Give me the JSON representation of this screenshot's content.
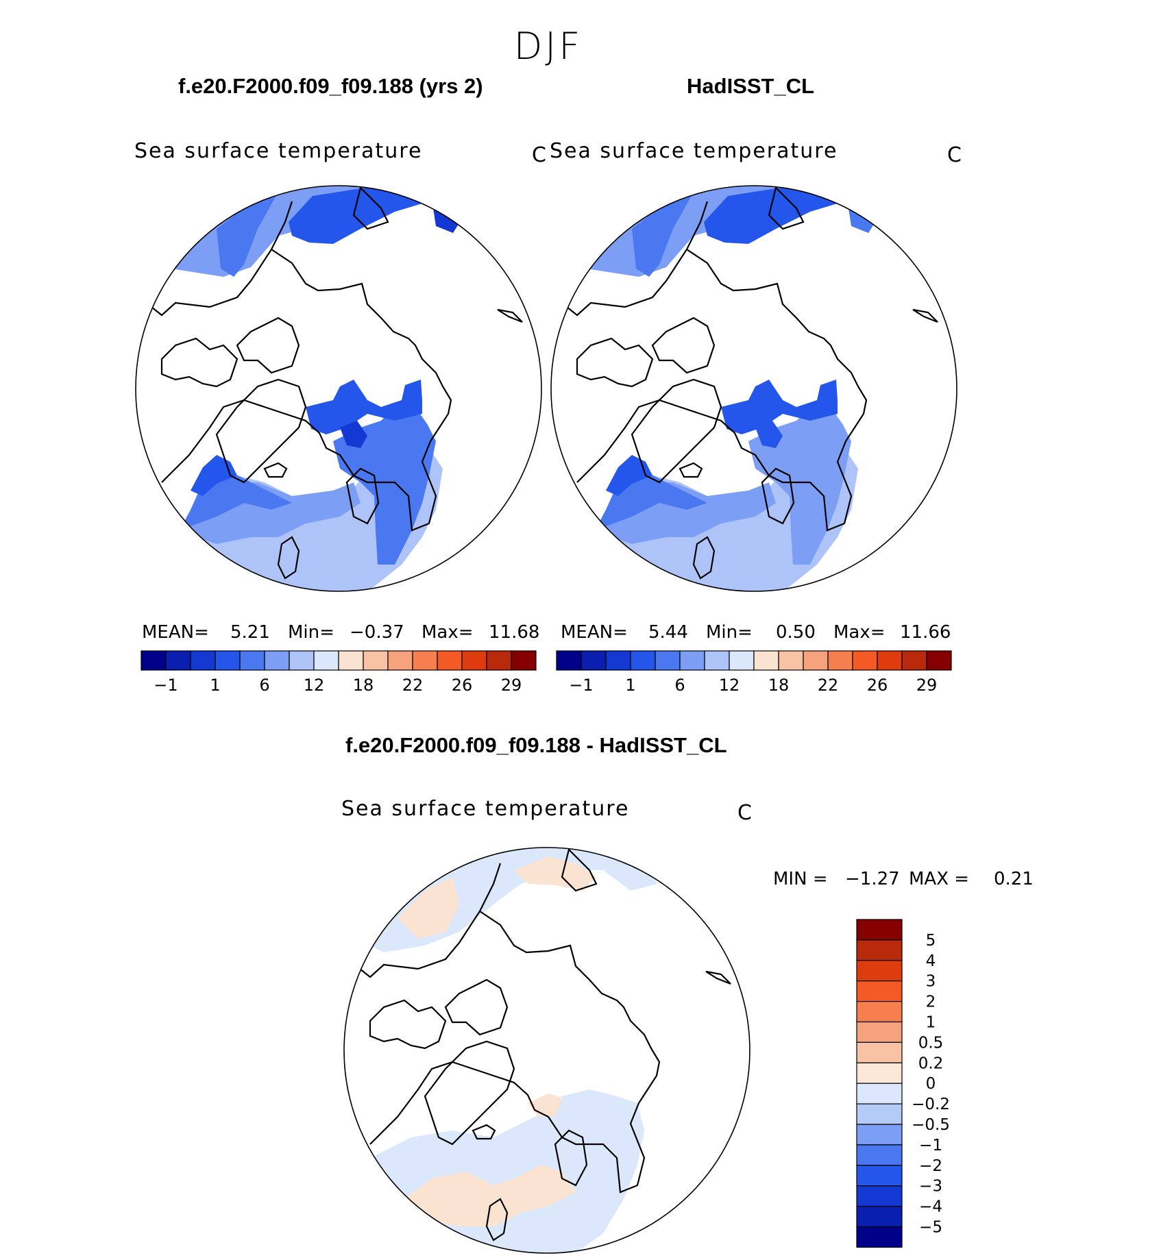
{
  "season": "DJF",
  "panels": [
    {
      "case": "f.e20.F2000.f09_f09.188 (yrs 2)",
      "variable": "Sea surface temperature",
      "units": "C",
      "mean_label": "MEAN=",
      "mean": "5.21",
      "min_label": "Min=",
      "min": "−0.37",
      "max_label": "Max=",
      "max": "11.68"
    },
    {
      "case": "HadISST_CL",
      "variable": "Sea surface temperature",
      "units": "C",
      "mean_label": "MEAN=",
      "mean": "5.44",
      "min_label": "Min=",
      "min": "0.50",
      "max_label": "Max=",
      "max": "11.66"
    }
  ],
  "diff": {
    "title": "f.e20.F2000.f09_f09.188 - HadISST_CL",
    "variable": "Sea surface temperature",
    "units": "C",
    "min_label": "MIN =",
    "min": "−1.27",
    "max_label": "MAX =",
    "max": "0.21"
  },
  "chart_data": [
    {
      "type": "heatmap",
      "title": "f.e20.F2000.f09_f09.188 (yrs 2)",
      "projection": "north-polar-stereographic",
      "variable": "Sea surface temperature",
      "units": "C",
      "mean": 5.21,
      "min": -0.37,
      "max": 11.68,
      "colorbar_ticks": [
        "−1",
        "1",
        "6",
        "12",
        "18",
        "22",
        "26",
        "29"
      ]
    },
    {
      "type": "heatmap",
      "title": "HadISST_CL",
      "projection": "north-polar-stereographic",
      "variable": "Sea surface temperature",
      "units": "C",
      "mean": 5.44,
      "min": 0.5,
      "max": 11.66,
      "colorbar_ticks": [
        "−1",
        "1",
        "6",
        "12",
        "18",
        "22",
        "26",
        "29"
      ]
    },
    {
      "type": "heatmap",
      "title": "f.e20.F2000.f09_f09.188 - HadISST_CL",
      "projection": "north-polar-stereographic",
      "variable": "Sea surface temperature",
      "units": "C",
      "min": -1.27,
      "max": 0.21,
      "colorbar_ticks": [
        "5",
        "4",
        "3",
        "2",
        "1",
        "0.5",
        "0.2",
        "0",
        "−0.2",
        "−0.5",
        "−1",
        "−2",
        "−3",
        "−4",
        "−5"
      ]
    }
  ],
  "colors": {
    "sst_scale": [
      "#00008b",
      "#0a1fb0",
      "#1438d2",
      "#2456ec",
      "#4a78f0",
      "#7d9ef5",
      "#aec3f7",
      "#dbe8fb",
      "#fbe3d2",
      "#f8c3a5",
      "#f6a27c",
      "#f77f4f",
      "#f45a26",
      "#de3c0e",
      "#b82a0b",
      "#870000"
    ],
    "diff_scale": [
      "#870000",
      "#b82a0b",
      "#de3c0e",
      "#f45a26",
      "#f77f4f",
      "#f6a27c",
      "#f8c3a5",
      "#fbe8d9",
      "#dbe8fb",
      "#b4cbf8",
      "#7d9ef5",
      "#4a78f0",
      "#2456ec",
      "#1438d2",
      "#0a1fb0",
      "#00008b"
    ],
    "diff_warm": "#fbe3d2",
    "diff_cool": "#dbe8fb"
  }
}
